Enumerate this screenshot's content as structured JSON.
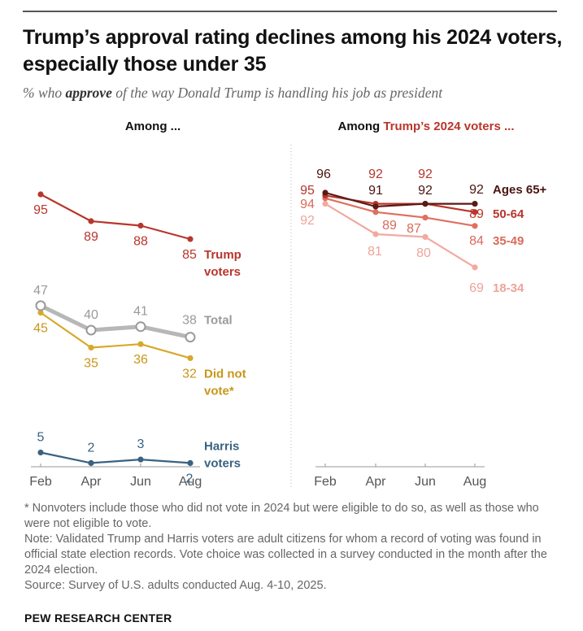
{
  "header": {
    "title": "Trump’s approval rating declines among his 2024 voters, especially those under 35",
    "subtitle_pre": "% who ",
    "subtitle_bold": "approve",
    "subtitle_post": " of the way Donald Trump is handling his job as president"
  },
  "chart_data": [
    {
      "type": "line",
      "panel": "left",
      "heading": "Among ...",
      "heading_highlight": "",
      "categories": [
        "Feb",
        "Apr",
        "Jun",
        "Aug"
      ],
      "ylim": [
        0,
        100
      ],
      "series": [
        {
          "name": "Trump voters",
          "label_lines": [
            "Trump",
            "voters"
          ],
          "values": [
            95,
            89,
            88,
            85
          ],
          "color": "#b8362c",
          "label_color": "#b8362c",
          "value_color": "#b8362c"
        },
        {
          "name": "Total",
          "label_lines": [
            "Total"
          ],
          "values": [
            47,
            40,
            41,
            38
          ],
          "color": "#b7b7b7",
          "label_color": "#9a9a9a",
          "value_color": "#9a9a9a",
          "width": 5,
          "hollow": true
        },
        {
          "name": "Did not vote*",
          "label_lines": [
            "Did not",
            "vote*"
          ],
          "values": [
            45,
            35,
            36,
            32
          ],
          "color": "#d8a82c",
          "label_color": "#c9961a",
          "value_color": "#c9961a"
        },
        {
          "name": "Harris voters",
          "label_lines": [
            "Harris",
            "voters"
          ],
          "values": [
            5,
            2,
            3,
            2
          ],
          "color": "#3a6281",
          "label_color": "#3a6281",
          "value_color": "#3a6281"
        }
      ]
    },
    {
      "type": "line",
      "panel": "right",
      "heading": "Among ",
      "heading_highlight": "Trump’s 2024 voters ...",
      "categories": [
        "Feb",
        "Apr",
        "Jun",
        "Aug"
      ],
      "ylim": [
        0,
        100
      ],
      "series": [
        {
          "name": "Ages 65+",
          "label_lines": [
            "Ages 65+"
          ],
          "values": [
            96,
            91,
            92,
            92
          ],
          "color": "#5b1a14",
          "label_color": "#4a1410",
          "value_color": "#4a1410"
        },
        {
          "name": "50-64",
          "label_lines": [
            "50-64"
          ],
          "values": [
            95,
            92,
            92,
            89
          ],
          "color": "#b8362c",
          "label_color": "#b8362c",
          "value_color": "#b8362c"
        },
        {
          "name": "35-49",
          "label_lines": [
            "35-49"
          ],
          "values": [
            94,
            89,
            87,
            84
          ],
          "color": "#e07060",
          "label_color": "#d96b5a",
          "value_color": "#d96b5a"
        },
        {
          "name": "18-34",
          "label_lines": [
            "18-34"
          ],
          "values": [
            92,
            81,
            80,
            69
          ],
          "color": "#f2aaa0",
          "label_color": "#eda49a",
          "value_color": "#eda49a"
        }
      ]
    }
  ],
  "footnotes": {
    "nonvoters": "* Nonvoters include those who did not vote in 2024 but were eligible to do so, as well as those who were not eligible to vote.",
    "note": "Note: Validated Trump and Harris voters are adult citizens for whom a record of voting was found in official state election records. Vote choice was collected in a survey conducted in the month after the 2024 election.",
    "source": "Source: Survey of U.S. adults conducted Aug. 4-10, 2025."
  },
  "brand": "PEW RESEARCH CENTER"
}
